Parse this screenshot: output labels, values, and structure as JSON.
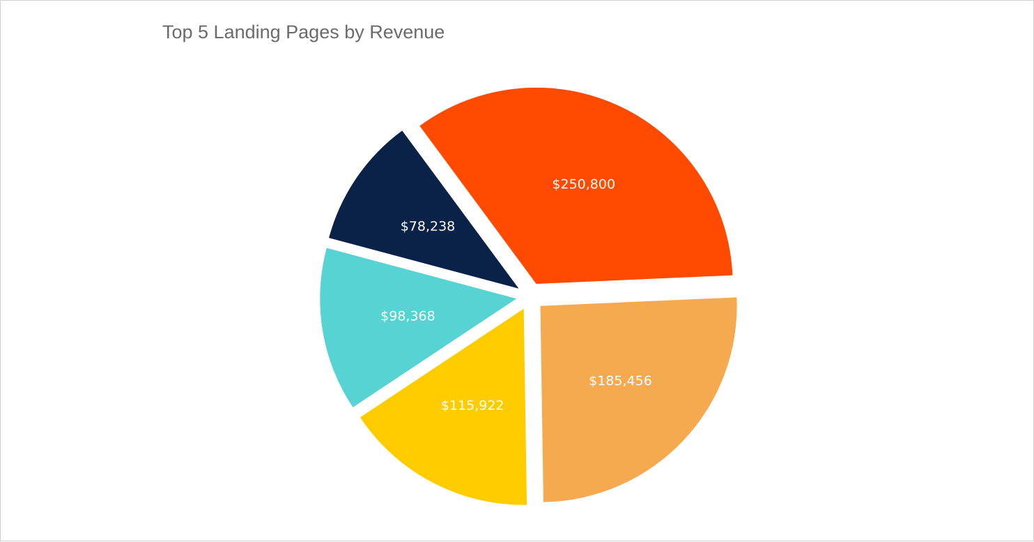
{
  "chart_data": {
    "type": "pie",
    "title": "Top 5 Landing Pages by Revenue",
    "slices": [
      {
        "value": 250800,
        "label": "$250,800",
        "color": "#FF4A00"
      },
      {
        "value": 78238,
        "label": "$78,238",
        "color": "#0A2248"
      },
      {
        "value": 98368,
        "label": "$98,368",
        "color": "#57D3D3"
      },
      {
        "value": 115922,
        "label": "$115,922",
        "color": "#FFCC00"
      },
      {
        "value": 185456,
        "label": "$185,456",
        "color": "#F6AA50"
      }
    ],
    "legend": "none"
  }
}
